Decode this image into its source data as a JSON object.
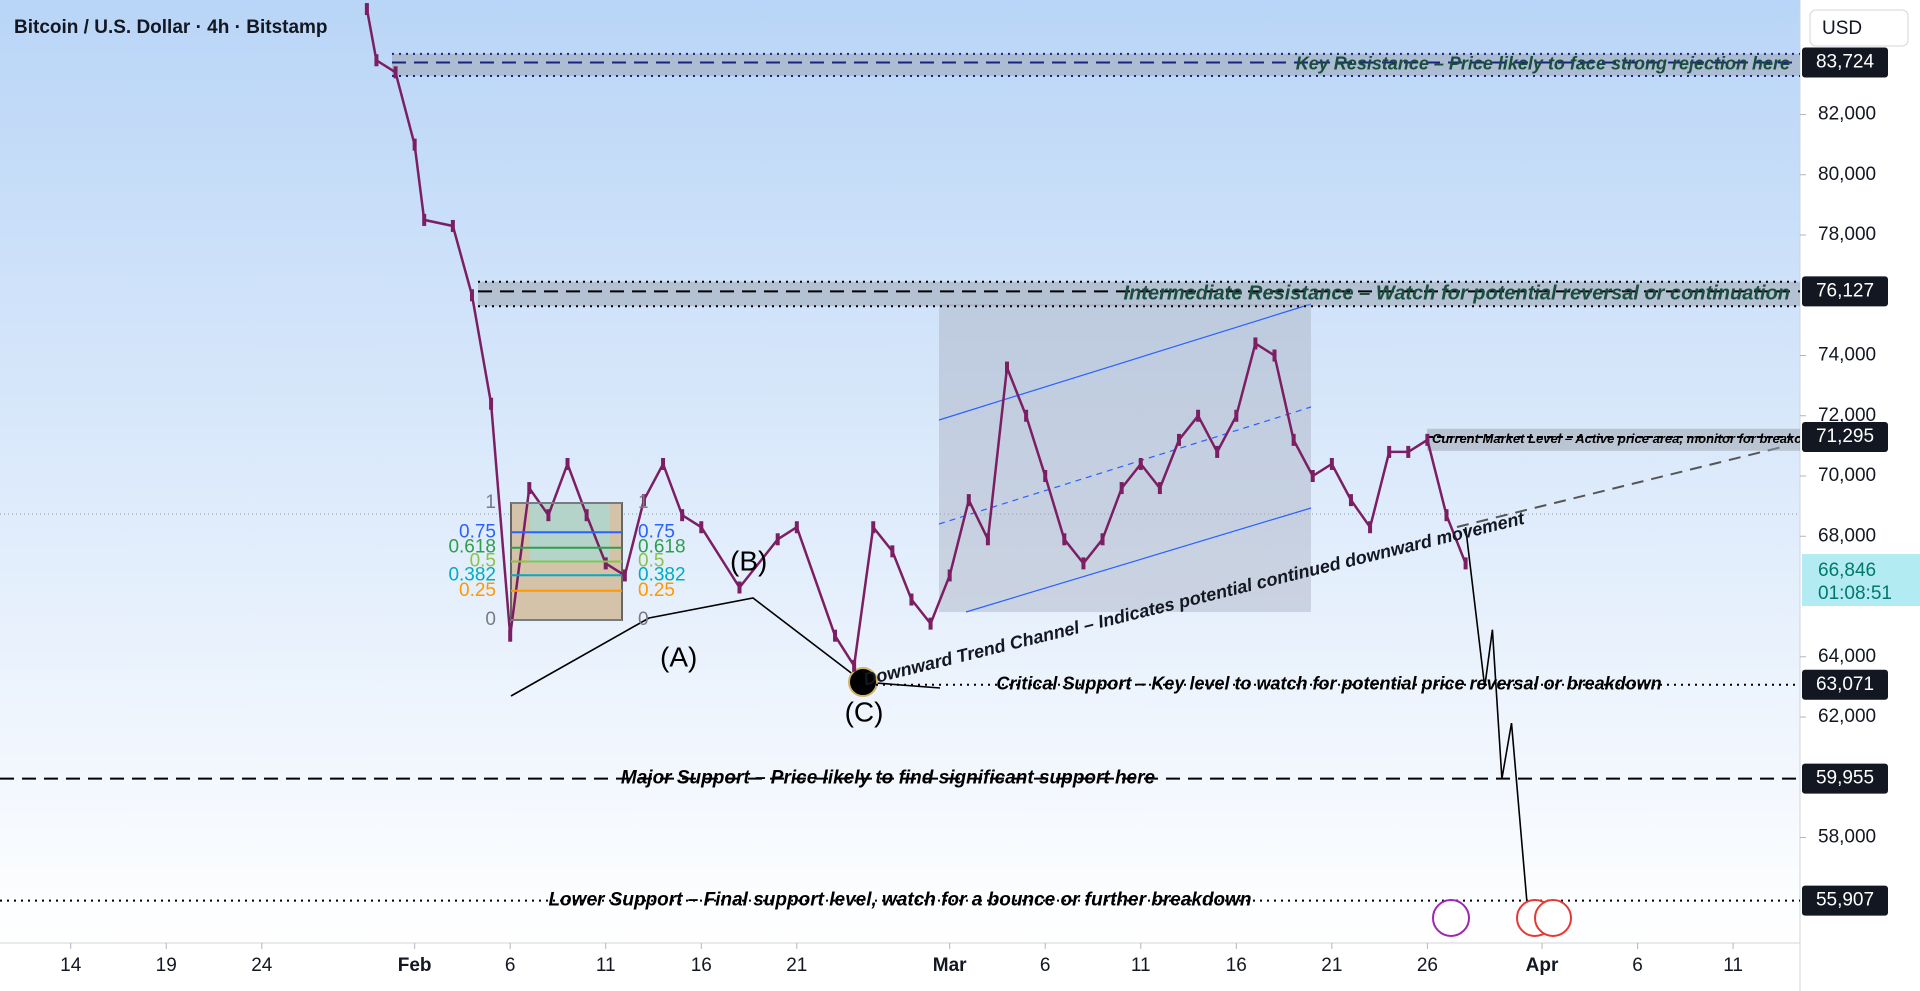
{
  "chart_data": {
    "type": "line",
    "title": "Bitcoin / U.S. Dollar · 4h · Bitstamp",
    "currency_button": "USD",
    "color": "#7b1f62",
    "xlim": [
      -3.7,
      90.5
    ],
    "ylim": [
      54500,
      85800
    ],
    "xticks": [
      {
        "value": 0,
        "label": "14"
      },
      {
        "value": 5,
        "label": "19"
      },
      {
        "value": 10,
        "label": "24"
      },
      {
        "value": 18,
        "label": "Feb"
      },
      {
        "value": 23,
        "label": "6"
      },
      {
        "value": 28,
        "label": "11"
      },
      {
        "value": 33,
        "label": "16"
      },
      {
        "value": 38,
        "label": "21"
      },
      {
        "value": 46,
        "label": "Mar"
      },
      {
        "value": 51,
        "label": "6"
      },
      {
        "value": 56,
        "label": "11"
      },
      {
        "value": 61,
        "label": "16"
      },
      {
        "value": 66,
        "label": "21"
      },
      {
        "value": 71,
        "label": "26"
      },
      {
        "value": 77,
        "label": "Apr"
      },
      {
        "value": 82,
        "label": "6"
      },
      {
        "value": 87,
        "label": "11"
      }
    ],
    "yticks": [
      {
        "value": 58000,
        "label": "58,000"
      },
      {
        "value": 62000,
        "label": "62,000"
      },
      {
        "value": 64000,
        "label": "64,000"
      },
      {
        "value": 68000,
        "label": "68,000"
      },
      {
        "value": 70000,
        "label": "70,000"
      },
      {
        "value": 72000,
        "label": "72,000"
      },
      {
        "value": 74000,
        "label": "74,000"
      },
      {
        "value": 78000,
        "label": "78,000"
      },
      {
        "value": 80000,
        "label": "80,000"
      },
      {
        "value": 82000,
        "label": "82,000"
      }
    ],
    "x": [
      15.5,
      16,
      17,
      18,
      18.5,
      20,
      21,
      22,
      23,
      24,
      25,
      26,
      27,
      28,
      29,
      30,
      31,
      32,
      33,
      35,
      37,
      38,
      40,
      41,
      42,
      43,
      44,
      45,
      46,
      47,
      48,
      49,
      50,
      51,
      52,
      53,
      54,
      55,
      56,
      57,
      58,
      59,
      60,
      61,
      62,
      63,
      64,
      65,
      66,
      67,
      68,
      69,
      70,
      71,
      72,
      73
    ],
    "values": [
      85500,
      83800,
      83400,
      81000,
      78500,
      78300,
      76000,
      72400,
      64700,
      69600,
      68700,
      70400,
      68700,
      67100,
      66700,
      69200,
      70400,
      68700,
      68300,
      66300,
      67900,
      68300,
      64700,
      63700,
      68300,
      67500,
      65900,
      65100,
      66700,
      69200,
      67900,
      73600,
      72000,
      70000,
      67900,
      67100,
      67900,
      69600,
      70400,
      69600,
      71200,
      72000,
      70800,
      72000,
      74400,
      74000,
      71200,
      70000,
      70400,
      69200,
      68300,
      70800,
      70800,
      71200,
      68700,
      67100
    ],
    "projection": {
      "x": [
        73,
        74,
        74.4,
        74.9,
        75.4,
        76.2
      ],
      "values": [
        68300,
        63000,
        64900,
        59950,
        61800,
        55907
      ]
    },
    "current_price": {
      "value": 66846,
      "label": "66,846",
      "countdown": "01:08:51"
    },
    "levels": [
      {
        "value": 83724,
        "label": "83,724",
        "text": "Key Resistance – Price likely to face strong rejection here",
        "style": "dashed",
        "color": "#1a237e"
      },
      {
        "value": 76127,
        "label": "76,127",
        "text": "Intermediate Resistance – Watch for potential reversal or continuation",
        "style": "dashed",
        "color": "#000000"
      },
      {
        "value": 71295,
        "label": "71,295",
        "text": "Current Market Level – Active price area, monitor for breakout",
        "style": "band",
        "color": "#000000"
      },
      {
        "value": 63071,
        "label": "63,071",
        "text": "Critical Support – Key level to watch for potential price reversal or breakdown",
        "style": "dotted",
        "color": "#000000"
      },
      {
        "value": 59955,
        "label": "59,955",
        "text": "Major Support – Price likely to find significant support here",
        "style": "dashed",
        "color": "#000000"
      },
      {
        "value": 55907,
        "label": "55,907",
        "text": "Lower Support – Final support level, watch for a bounce or further breakdown",
        "style": "dotted",
        "color": "#000000"
      }
    ],
    "fib_levels": [
      1,
      0.75,
      0.618,
      0.5,
      0.382,
      0.25,
      0
    ],
    "wave_labels": [
      "(A)",
      "(B)",
      "(C)"
    ],
    "channel_label": "Downward Trend Channel – Indicates potential continued downward movement"
  }
}
